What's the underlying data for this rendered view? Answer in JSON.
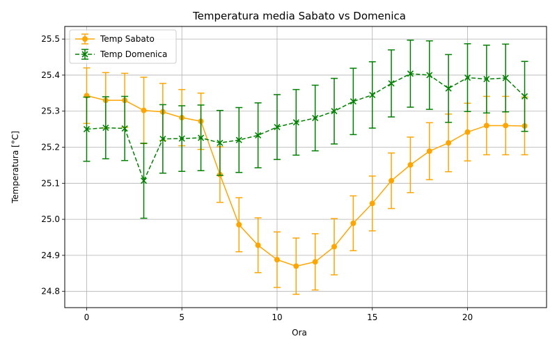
{
  "chart_data": {
    "type": "line",
    "title": "Temperatura media Sabato vs Domenica",
    "xlabel": "Ora",
    "ylabel": "Temperatura [°C]",
    "xlim": [
      -1.15,
      24.15
    ],
    "ylim": [
      24.755,
      25.535
    ],
    "x_ticks": [
      0,
      5,
      10,
      15,
      20
    ],
    "x_tick_labels": [
      "0",
      "5",
      "10",
      "15",
      "20"
    ],
    "y_ticks": [
      24.8,
      24.9,
      25.0,
      25.1,
      25.2,
      25.3,
      25.4,
      25.5
    ],
    "y_tick_labels": [
      "24.8",
      "24.9",
      "25.0",
      "25.1",
      "25.2",
      "25.3",
      "25.4",
      "25.5"
    ],
    "grid": true,
    "legend_position": "top-left",
    "x": [
      0,
      1,
      2,
      3,
      4,
      5,
      6,
      7,
      8,
      9,
      10,
      11,
      12,
      13,
      14,
      15,
      16,
      17,
      18,
      19,
      20,
      21,
      22,
      23
    ],
    "series": [
      {
        "name": "Temp Sabato",
        "color": "#ffa500",
        "marker": "circle",
        "linestyle": "solid",
        "values": [
          25.343,
          25.33,
          25.33,
          25.302,
          25.298,
          25.282,
          25.272,
          25.124,
          24.985,
          24.928,
          24.888,
          24.87,
          24.882,
          24.924,
          24.989,
          25.044,
          25.107,
          25.151,
          25.189,
          25.212,
          25.242,
          25.26,
          25.26,
          25.259
        ],
        "errors": [
          0.077,
          0.077,
          0.075,
          0.092,
          0.079,
          0.078,
          0.078,
          0.077,
          0.075,
          0.076,
          0.077,
          0.078,
          0.078,
          0.078,
          0.076,
          0.076,
          0.077,
          0.077,
          0.079,
          0.08,
          0.08,
          0.081,
          0.081,
          0.08
        ]
      },
      {
        "name": "Temp Domenica",
        "color": "#008000",
        "marker": "x",
        "linestyle": "dashed",
        "values": [
          25.25,
          25.254,
          25.252,
          25.107,
          25.223,
          25.224,
          25.226,
          25.212,
          25.22,
          25.233,
          25.256,
          25.269,
          25.281,
          25.3,
          25.327,
          25.345,
          25.377,
          25.404,
          25.4,
          25.363,
          25.393,
          25.389,
          25.392,
          25.341
        ],
        "errors": [
          0.089,
          0.086,
          0.089,
          0.104,
          0.095,
          0.091,
          0.091,
          0.09,
          0.09,
          0.09,
          0.09,
          0.091,
          0.091,
          0.091,
          0.092,
          0.092,
          0.093,
          0.093,
          0.095,
          0.094,
          0.094,
          0.094,
          0.094,
          0.097
        ]
      }
    ]
  }
}
